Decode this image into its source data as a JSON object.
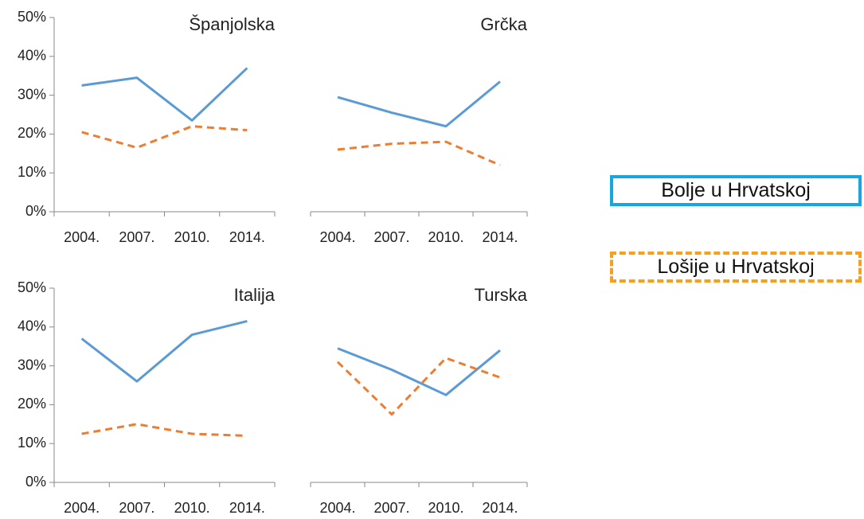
{
  "chart_data": [
    {
      "type": "line",
      "title": "Španjolska",
      "categories": [
        "2004.",
        "2007.",
        "2010.",
        "2014."
      ],
      "series": [
        {
          "name": "Bolje u Hrvatskoj",
          "color": "#5b9bd5",
          "values": [
            32.5,
            34.5,
            23.5,
            37
          ]
        },
        {
          "name": "Lošije u Hrvatskoj",
          "color": "#ed7d31",
          "dash": true,
          "values": [
            20.5,
            16.5,
            22,
            21
          ]
        }
      ],
      "ylim": [
        0,
        50
      ],
      "yticks": [
        {
          "value": 0,
          "label": "0%"
        },
        {
          "value": 10,
          "label": "10%"
        },
        {
          "value": 20,
          "label": "20%"
        },
        {
          "value": 30,
          "label": "30%"
        },
        {
          "value": 40,
          "label": "40%"
        },
        {
          "value": 50,
          "label": "50%"
        }
      ]
    },
    {
      "type": "line",
      "title": "Grčka",
      "categories": [
        "2004.",
        "2007.",
        "2010.",
        "2014."
      ],
      "series": [
        {
          "color": "#5b9bd5",
          "values": [
            29.5,
            25.5,
            22,
            33.5
          ]
        },
        {
          "color": "#ed7d31",
          "dash": true,
          "values": [
            16,
            17.5,
            18,
            12
          ]
        }
      ],
      "ylim": [
        0,
        50
      ]
    },
    {
      "type": "line",
      "title": "Italija",
      "categories": [
        "2004.",
        "2007.",
        "2010.",
        "2014."
      ],
      "series": [
        {
          "color": "#5b9bd5",
          "values": [
            37,
            26,
            38,
            41.5
          ]
        },
        {
          "color": "#ed7d31",
          "dash": true,
          "values": [
            12.5,
            15,
            12.5,
            12
          ]
        }
      ],
      "ylim": [
        0,
        50
      ],
      "yticks": [
        {
          "value": 0,
          "label": "0%"
        },
        {
          "value": 10,
          "label": "10%"
        },
        {
          "value": 20,
          "label": "20%"
        },
        {
          "value": 30,
          "label": "30%"
        },
        {
          "value": 40,
          "label": "40%"
        },
        {
          "value": 50,
          "label": "50%"
        }
      ]
    },
    {
      "type": "line",
      "title": "Turska",
      "categories": [
        "2004.",
        "2007.",
        "2010.",
        "2014."
      ],
      "series": [
        {
          "color": "#5b9bd5",
          "values": [
            34.5,
            29,
            22.5,
            34
          ]
        },
        {
          "color": "#ed7d31",
          "dash": true,
          "values": [
            31,
            17.5,
            32,
            27
          ]
        }
      ],
      "ylim": [
        0,
        50
      ]
    }
  ]
}
